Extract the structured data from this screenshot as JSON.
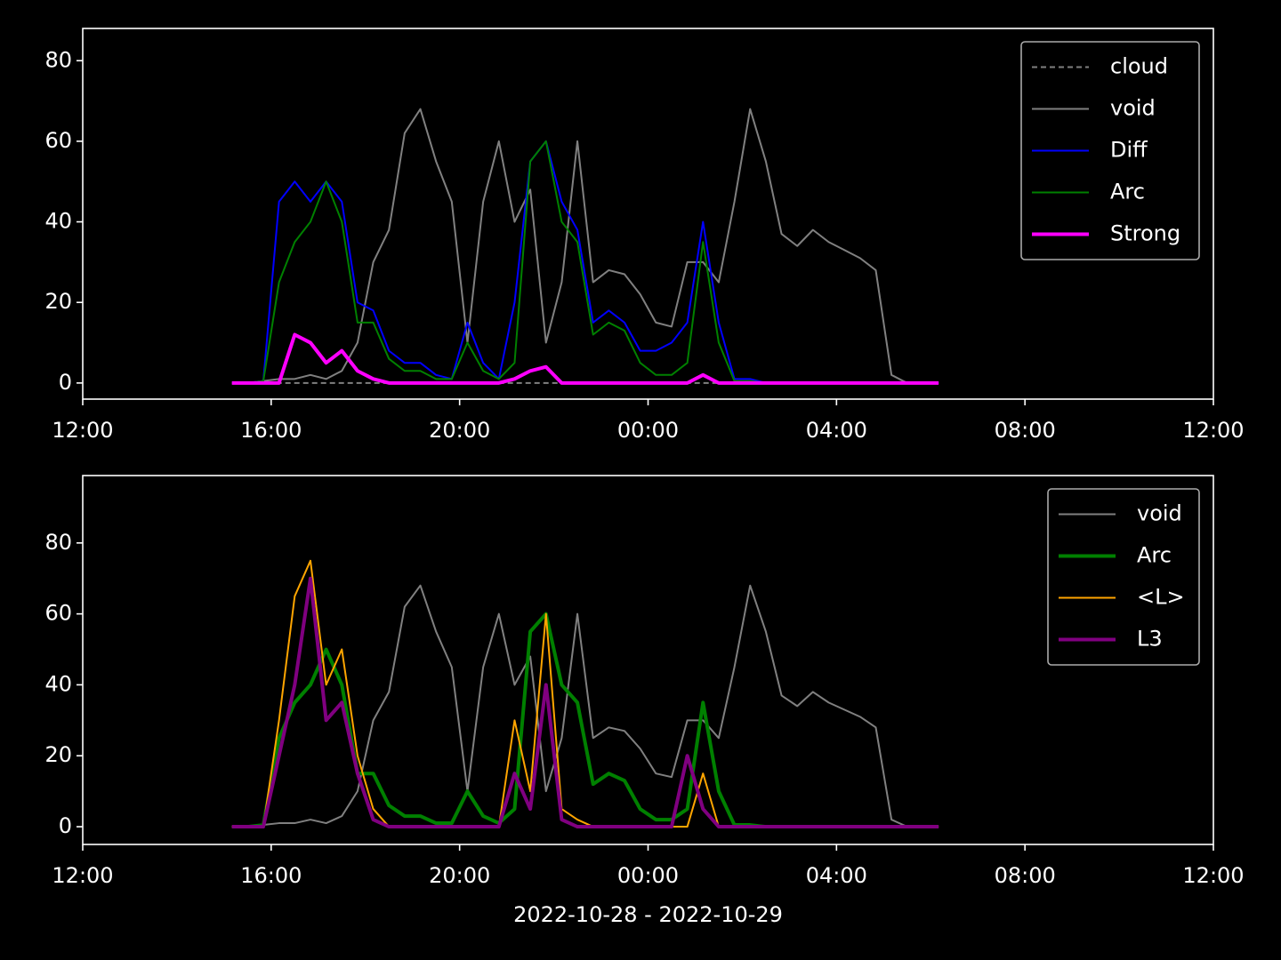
{
  "chart_data": [
    {
      "type": "line",
      "x": [
        "2022-10-28 15:10",
        "2022-10-28 15:30",
        "2022-10-28 15:50",
        "2022-10-28 16:10",
        "2022-10-28 16:30",
        "2022-10-28 16:50",
        "2022-10-28 17:10",
        "2022-10-28 17:30",
        "2022-10-28 17:50",
        "2022-10-28 18:10",
        "2022-10-28 18:30",
        "2022-10-28 18:50",
        "2022-10-28 19:10",
        "2022-10-28 19:30",
        "2022-10-28 19:50",
        "2022-10-28 20:10",
        "2022-10-28 20:30",
        "2022-10-28 20:50",
        "2022-10-28 21:10",
        "2022-10-28 21:30",
        "2022-10-28 21:50",
        "2022-10-28 22:10",
        "2022-10-28 22:30",
        "2022-10-28 22:50",
        "2022-10-28 23:10",
        "2022-10-28 23:30",
        "2022-10-28 23:50",
        "2022-10-29 00:10",
        "2022-10-29 00:30",
        "2022-10-29 00:50",
        "2022-10-29 01:10",
        "2022-10-29 01:30",
        "2022-10-29 01:50",
        "2022-10-29 02:10",
        "2022-10-29 02:30",
        "2022-10-29 02:50",
        "2022-10-29 03:10",
        "2022-10-29 03:30",
        "2022-10-29 03:50",
        "2022-10-29 04:10",
        "2022-10-29 04:30",
        "2022-10-29 04:50",
        "2022-10-29 05:10",
        "2022-10-29 05:30",
        "2022-10-29 05:50",
        "2022-10-29 06:10"
      ],
      "xlim": [
        "2022-10-28 12:00",
        "2022-10-29 12:00"
      ],
      "xticks": [
        {
          "value": "2022-10-28 12:00",
          "label": "12:00"
        },
        {
          "value": "2022-10-28 16:00",
          "label": "16:00"
        },
        {
          "value": "2022-10-28 20:00",
          "label": "20:00"
        },
        {
          "value": "2022-10-29 00:00",
          "label": "00:00"
        },
        {
          "value": "2022-10-29 04:00",
          "label": "04:00"
        },
        {
          "value": "2022-10-29 08:00",
          "label": "08:00"
        },
        {
          "value": "2022-10-29 12:00",
          "label": "12:00"
        }
      ],
      "ylim": [
        -4,
        88
      ],
      "yticks": [
        0,
        20,
        40,
        60,
        80
      ],
      "legend": "upper right",
      "series": [
        {
          "name": "cloud",
          "color": "#808080",
          "linestyle": "dashed",
          "linewidth": 2,
          "values": [
            0,
            0,
            0,
            0,
            0,
            0,
            0,
            0,
            0,
            0,
            0,
            0,
            0,
            0,
            0,
            0,
            0,
            0,
            0,
            0,
            0,
            0,
            0,
            0,
            0,
            0,
            0,
            0,
            0,
            0,
            0,
            0,
            0,
            0,
            0,
            0,
            0,
            0,
            0,
            0,
            0,
            0,
            0,
            0,
            0,
            0
          ]
        },
        {
          "name": "void",
          "color": "#808080",
          "linestyle": "solid",
          "linewidth": 2,
          "values": [
            0,
            0,
            0.5,
            1,
            1,
            2,
            1,
            3,
            10,
            30,
            38,
            62,
            68,
            55,
            45,
            10,
            45,
            60,
            40,
            48,
            10,
            25,
            60,
            25,
            28,
            27,
            22,
            15,
            14,
            30,
            30,
            25,
            45,
            68,
            55,
            37,
            34,
            38,
            35,
            33,
            31,
            28,
            2,
            0,
            0,
            0
          ]
        },
        {
          "name": "Diff",
          "color": "#0000ff",
          "linestyle": "solid",
          "linewidth": 2,
          "values": [
            0,
            0,
            0.5,
            45,
            50,
            45,
            50,
            45,
            20,
            18,
            8,
            5,
            5,
            2,
            1,
            15,
            5,
            1,
            20,
            55,
            60,
            45,
            38,
            15,
            18,
            15,
            8,
            8,
            10,
            15,
            40,
            15,
            1,
            1,
            0,
            0,
            0,
            0,
            0,
            0,
            0,
            0,
            0,
            0,
            0,
            0
          ]
        },
        {
          "name": "Arc",
          "color": "#008000",
          "linestyle": "solid",
          "linewidth": 2,
          "values": [
            0,
            0,
            0.5,
            25,
            35,
            40,
            50,
            40,
            15,
            15,
            6,
            3,
            3,
            1,
            1,
            10,
            3,
            1,
            5,
            55,
            60,
            40,
            35,
            12,
            15,
            13,
            5,
            2,
            2,
            5,
            35,
            10,
            0.5,
            0.5,
            0,
            0,
            0,
            0,
            0,
            0,
            0,
            0,
            0,
            0,
            0,
            0
          ]
        },
        {
          "name": "Strong",
          "color": "#ff00ff",
          "linestyle": "solid",
          "linewidth": 4,
          "values": [
            0,
            0,
            0,
            0,
            12,
            10,
            5,
            8,
            3,
            1,
            0,
            0,
            0,
            0,
            0,
            0,
            0,
            0,
            1,
            3,
            4,
            0,
            0,
            0,
            0,
            0,
            0,
            0,
            0,
            0,
            2,
            0,
            0,
            0,
            0,
            0,
            0,
            0,
            0,
            0,
            0,
            0,
            0,
            0,
            0,
            0
          ]
        }
      ]
    },
    {
      "type": "line",
      "x": [
        "2022-10-28 15:10",
        "2022-10-28 15:30",
        "2022-10-28 15:50",
        "2022-10-28 16:10",
        "2022-10-28 16:30",
        "2022-10-28 16:50",
        "2022-10-28 17:10",
        "2022-10-28 17:30",
        "2022-10-28 17:50",
        "2022-10-28 18:10",
        "2022-10-28 18:30",
        "2022-10-28 18:50",
        "2022-10-28 19:10",
        "2022-10-28 19:30",
        "2022-10-28 19:50",
        "2022-10-28 20:10",
        "2022-10-28 20:30",
        "2022-10-28 20:50",
        "2022-10-28 21:10",
        "2022-10-28 21:30",
        "2022-10-28 21:50",
        "2022-10-28 22:10",
        "2022-10-28 22:30",
        "2022-10-28 22:50",
        "2022-10-28 23:10",
        "2022-10-28 23:30",
        "2022-10-28 23:50",
        "2022-10-29 00:10",
        "2022-10-29 00:30",
        "2022-10-29 00:50",
        "2022-10-29 01:10",
        "2022-10-29 01:30",
        "2022-10-29 01:50",
        "2022-10-29 02:10",
        "2022-10-29 02:30",
        "2022-10-29 02:50",
        "2022-10-29 03:10",
        "2022-10-29 03:30",
        "2022-10-29 03:50",
        "2022-10-29 04:10",
        "2022-10-29 04:30",
        "2022-10-29 04:50",
        "2022-10-29 05:10",
        "2022-10-29 05:30",
        "2022-10-29 05:50",
        "2022-10-29 06:10"
      ],
      "xlim": [
        "2022-10-28 12:00",
        "2022-10-29 12:00"
      ],
      "xticks": [
        {
          "value": "2022-10-28 12:00",
          "label": "12:00"
        },
        {
          "value": "2022-10-28 16:00",
          "label": "16:00"
        },
        {
          "value": "2022-10-28 20:00",
          "label": "20:00"
        },
        {
          "value": "2022-10-29 00:00",
          "label": "00:00"
        },
        {
          "value": "2022-10-29 04:00",
          "label": "04:00"
        },
        {
          "value": "2022-10-29 08:00",
          "label": "08:00"
        },
        {
          "value": "2022-10-29 12:00",
          "label": "12:00"
        }
      ],
      "ylim": [
        -5,
        99
      ],
      "yticks": [
        0,
        20,
        40,
        60,
        80
      ],
      "legend": "upper right",
      "x_label": "2022-10-28 - 2022-10-29",
      "series": [
        {
          "name": "void",
          "color": "#808080",
          "linestyle": "solid",
          "linewidth": 2,
          "values": [
            0,
            0,
            0.5,
            1,
            1,
            2,
            1,
            3,
            10,
            30,
            38,
            62,
            68,
            55,
            45,
            10,
            45,
            60,
            40,
            48,
            10,
            25,
            60,
            25,
            28,
            27,
            22,
            15,
            14,
            30,
            30,
            25,
            45,
            68,
            55,
            37,
            34,
            38,
            35,
            33,
            31,
            28,
            2,
            0,
            0,
            0
          ]
        },
        {
          "name": "Arc",
          "color": "#008000",
          "linestyle": "solid",
          "linewidth": 4,
          "values": [
            0,
            0,
            0.5,
            25,
            35,
            40,
            50,
            40,
            15,
            15,
            6,
            3,
            3,
            1,
            1,
            10,
            3,
            1,
            5,
            55,
            60,
            40,
            35,
            12,
            15,
            13,
            5,
            2,
            2,
            5,
            35,
            10,
            0.5,
            0.5,
            0,
            0,
            0,
            0,
            0,
            0,
            0,
            0,
            0,
            0,
            0,
            0
          ]
        },
        {
          "name": "<L>",
          "color": "#ffa500",
          "linestyle": "solid",
          "linewidth": 2,
          "values": [
            0,
            0,
            0,
            30,
            65,
            75,
            40,
            50,
            20,
            5,
            0,
            0,
            0,
            0,
            0,
            0,
            0,
            0,
            30,
            10,
            60,
            5,
            2,
            0,
            0,
            0,
            0,
            0,
            0,
            0,
            15,
            0,
            0,
            0,
            0,
            0,
            0,
            0,
            0,
            0,
            0,
            0,
            0,
            0,
            0,
            0
          ]
        },
        {
          "name": "L3",
          "color": "#800080",
          "linestyle": "solid",
          "linewidth": 4,
          "values": [
            0,
            0,
            0,
            20,
            40,
            70,
            30,
            35,
            15,
            2,
            0,
            0,
            0,
            0,
            0,
            0,
            0,
            0,
            15,
            5,
            40,
            2,
            0,
            0,
            0,
            0,
            0,
            0,
            0,
            20,
            5,
            0,
            0,
            0,
            0,
            0,
            0,
            0,
            0,
            0,
            0,
            0,
            0,
            0,
            0,
            0
          ]
        }
      ]
    }
  ]
}
